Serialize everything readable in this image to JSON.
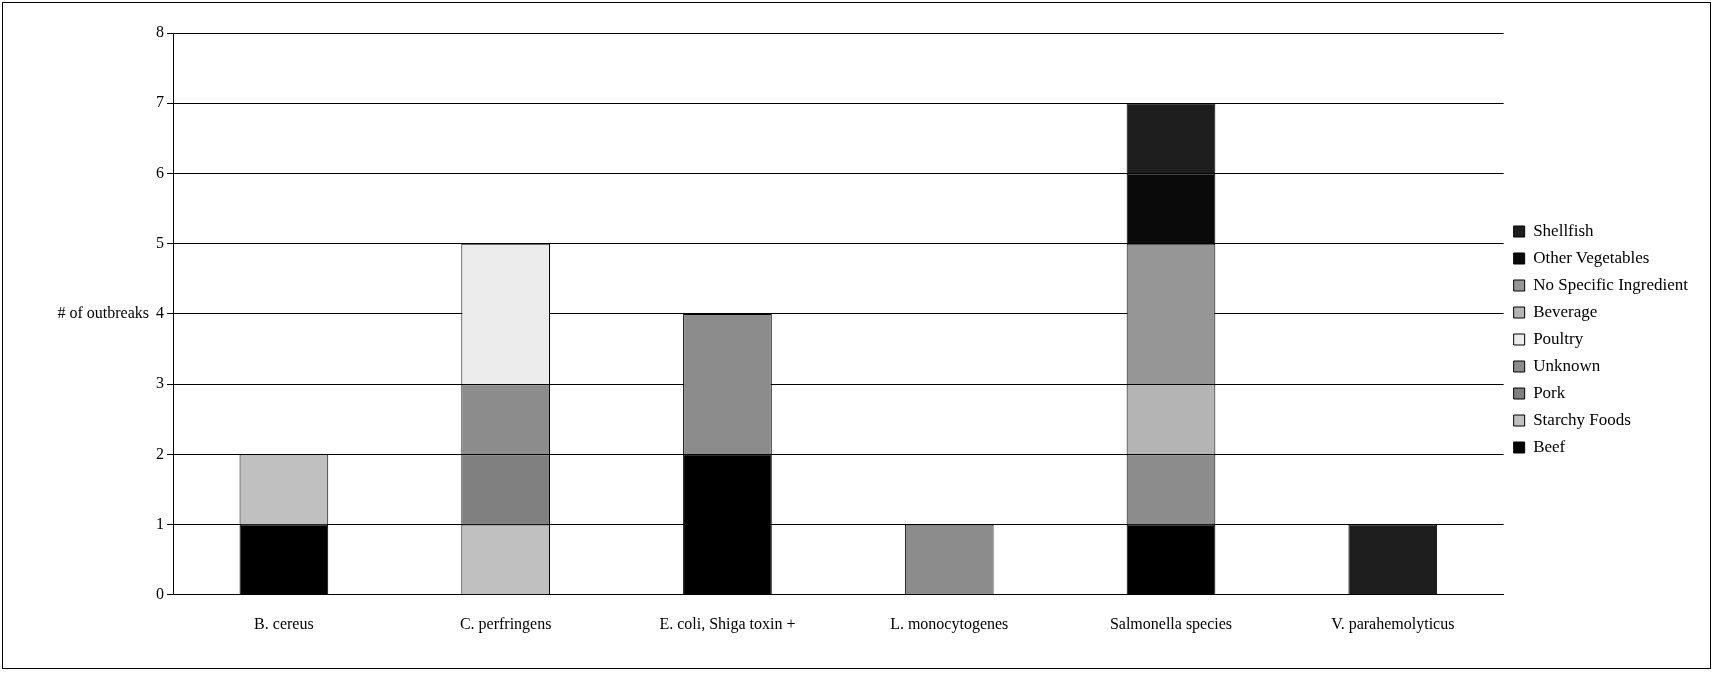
{
  "chart_data": {
    "type": "bar",
    "stacked": true,
    "ylabel": "# of outbreaks",
    "categories": [
      "B. cereus",
      "C. perfringens",
      "E. coli, Shiga toxin +",
      "L. monocytogenes",
      "Salmonella species",
      "V. parahemolyticus"
    ],
    "series": [
      {
        "name": "Beef",
        "color": "#000000",
        "values": [
          1,
          null,
          2,
          null,
          1,
          null
        ]
      },
      {
        "name": "Starchy Foods",
        "color": "#c0c0c0",
        "values": [
          1,
          1,
          null,
          null,
          null,
          null
        ]
      },
      {
        "name": "Pork",
        "color": "#808080",
        "values": [
          null,
          1,
          null,
          null,
          null,
          null
        ]
      },
      {
        "name": "Unknown",
        "color": "#8c8c8c",
        "values": [
          null,
          1,
          2,
          1,
          1,
          null
        ]
      },
      {
        "name": "Poultry",
        "color": "#ececec",
        "values": [
          null,
          2,
          null,
          null,
          null,
          null
        ]
      },
      {
        "name": "Beverage",
        "color": "#b4b4b4",
        "values": [
          null,
          null,
          null,
          null,
          1,
          null
        ]
      },
      {
        "name": "No Specific Ingredient",
        "color": "#969696",
        "values": [
          null,
          null,
          null,
          null,
          2,
          null
        ]
      },
      {
        "name": "Other Vegetables",
        "color": "#0a0a0a",
        "values": [
          null,
          null,
          null,
          null,
          1,
          null
        ]
      },
      {
        "name": "Shellfish",
        "color": "#1e1e1e",
        "values": [
          null,
          null,
          null,
          null,
          1,
          1
        ]
      }
    ],
    "ylim": [
      0,
      8
    ],
    "yticks": [
      0,
      1,
      2,
      3,
      4,
      5,
      6,
      7,
      8
    ],
    "grid": "y",
    "legend": "right"
  }
}
